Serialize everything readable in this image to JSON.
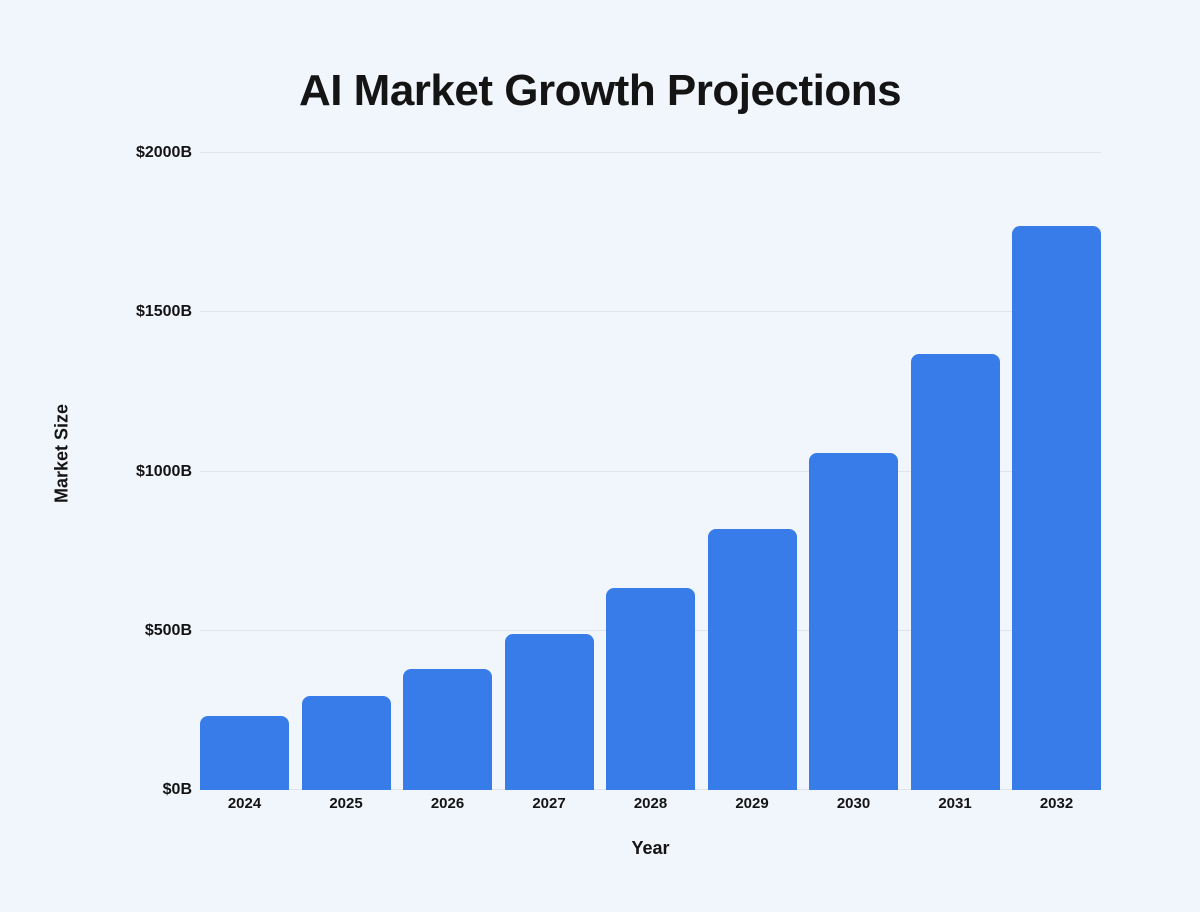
{
  "chart_data": {
    "type": "bar",
    "title": "AI Market Growth Projections",
    "xlabel": "Year",
    "ylabel": "Market Size",
    "categories": [
      "2024",
      "2025",
      "2026",
      "2027",
      "2028",
      "2029",
      "2030",
      "2031",
      "2032"
    ],
    "values": [
      233,
      294,
      380,
      491,
      634,
      820,
      1059,
      1368,
      1772
    ],
    "ylim": [
      0,
      2000
    ],
    "y_ticks": [
      {
        "value": 0,
        "label": "$0B"
      },
      {
        "value": 500,
        "label": "$500B"
      },
      {
        "value": 1000,
        "label": "$1000B"
      },
      {
        "value": 1500,
        "label": "$1500B"
      },
      {
        "value": 2000,
        "label": "$2000B"
      }
    ],
    "grid": true,
    "legend": false,
    "colors": {
      "bar": "#377CE8",
      "background": "#F1F5FC",
      "gridline": "#E0E5ED",
      "text": "#141414"
    }
  }
}
